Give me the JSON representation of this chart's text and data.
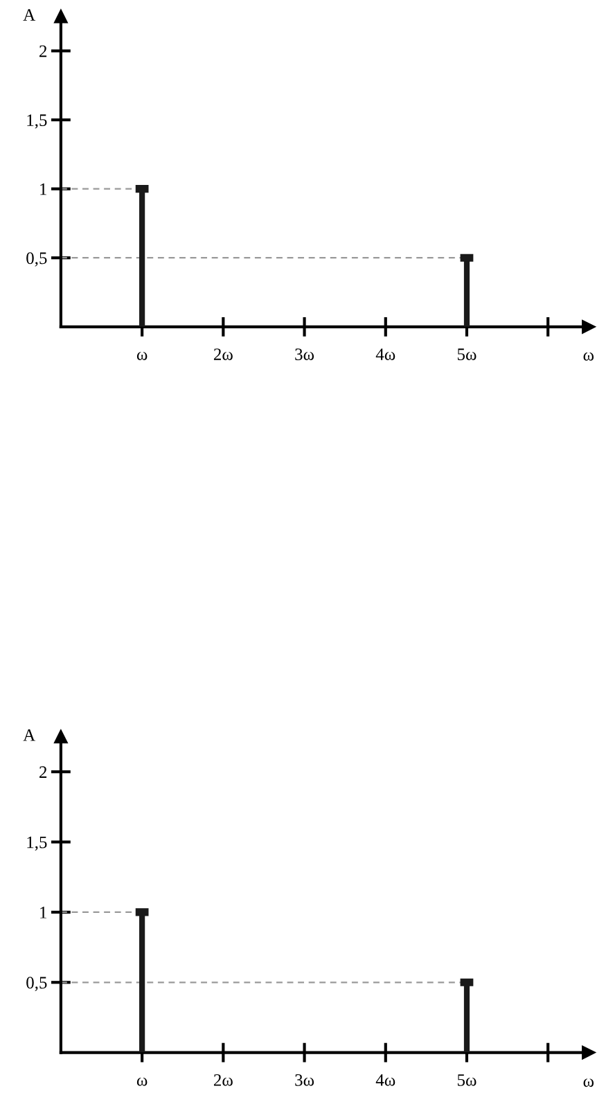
{
  "chart_data": [
    {
      "type": "bar",
      "xlabel": "ω",
      "ylabel": "A",
      "categories": [
        "ω",
        "2ω",
        "3ω",
        "4ω",
        "5ω",
        null
      ],
      "values": [
        1,
        null,
        null,
        null,
        0.5,
        null
      ],
      "color": "#1a1a1a",
      "ylim": [
        0,
        2.25
      ],
      "yticks": [
        {
          "value": 0.5,
          "label": "0,5"
        },
        {
          "value": 1,
          "label": "1"
        },
        {
          "value": 1.5,
          "label": "1,5"
        },
        {
          "value": 2,
          "label": "2"
        }
      ],
      "ref_lines": [
        {
          "axis": "y",
          "value": 1,
          "color": "#999999",
          "line_style": "dashed"
        },
        {
          "axis": "y",
          "value": 0.5,
          "color": "#999999",
          "line_style": "dashed"
        }
      ],
      "grid": false,
      "legend": false
    },
    {
      "type": "bar",
      "xlabel": "ω",
      "ylabel": "A",
      "categories": [
        "ω",
        "2ω",
        "3ω",
        "4ω",
        "5ω",
        null
      ],
      "values": [
        1,
        null,
        null,
        null,
        0.5,
        null
      ],
      "color": "#1a1a1a",
      "ylim": [
        0,
        2.25
      ],
      "yticks": [
        {
          "value": 0.5,
          "label": "0,5"
        },
        {
          "value": 1,
          "label": "1"
        },
        {
          "value": 1.5,
          "label": "1,5"
        },
        {
          "value": 2,
          "label": "2"
        }
      ],
      "ref_lines": [
        {
          "axis": "y",
          "value": 1,
          "color": "#999999",
          "line_style": "dashed"
        },
        {
          "axis": "y",
          "value": 0.5,
          "color": "#999999",
          "line_style": "dashed"
        }
      ],
      "grid": false,
      "legend": false
    }
  ]
}
